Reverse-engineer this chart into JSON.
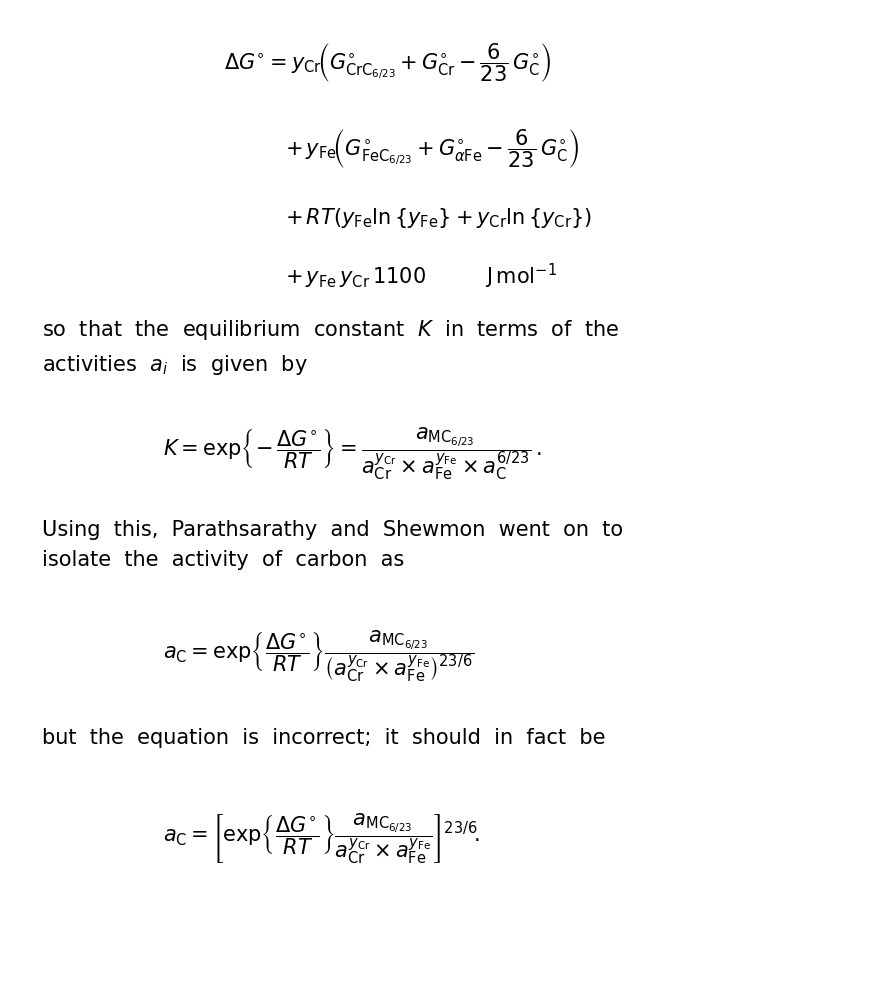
{
  "background_color": "#ffffff",
  "text_color": "#000000",
  "figsize": [
    8.82,
    10.01
  ],
  "dpi": 100,
  "equation1": "$\\Delta G^{\\circ} = y_{\\mathrm{Cr}}\\left(G^{\\circ}_{\\mathrm{CrC}_{6/23}} + G^{\\circ}_{\\mathrm{Cr}} - \\dfrac{6}{23}\\,G^{\\circ}_{\\mathrm{C}}\\right)$",
  "equation1b": "$+ y_{\\mathrm{Fe}}\\left(G^{\\circ}_{\\mathrm{FeC}_{6/23}} + G^{\\circ}_{\\alpha\\mathrm{Fe}} - \\dfrac{6}{23}\\,G^{\\circ}_{\\mathrm{C}}\\right)$",
  "equation1c": "$+ RT(y_{\\mathrm{Fe}}\\ln\\{y_{\\mathrm{Fe}}\\} + y_{\\mathrm{Cr}}\\ln\\{y_{\\mathrm{Cr}}\\})$",
  "equation1d": "$+ y_{\\mathrm{Fe}}\\,y_{\\mathrm{Cr}}\\,1100 \\qquad \\mathrm{J\\,mol^{-1}}$",
  "text1": "so  that  the  equilibrium  constant  $K$  in  terms  of  the\nactivities  $a_i$  is  given  by",
  "equation2": "$K = \\exp\\!\\left\\{-\\,\\dfrac{\\Delta G^{\\circ}}{RT}\\right\\} = \\dfrac{a_{\\mathrm{MC}_{6/23}}}{a^{y_{\\mathrm{Cr}}}_{\\mathrm{Cr}} \\times a^{y_{\\mathrm{Fe}}}_{\\mathrm{Fe}} \\times a^{6/23}_{\\mathrm{C}}}\\,.$",
  "text2": "Using  this,  Parathsarathy  and  Shewmon  went  on  to\nisolate  the  activity  of  carbon  as",
  "equation3": "$a_{\\mathrm{C}} = \\exp\\!\\left\\{\\dfrac{\\Delta G^{\\circ}}{RT}\\right\\} \\dfrac{a_{\\mathrm{MC}_{6/23}}}{\\left(a^{y_{\\mathrm{Cr}}}_{\\mathrm{Cr}} \\times a^{y_{\\mathrm{Fe}}}_{\\mathrm{Fe}}\\right)^{23/6}}$",
  "text3": "but  the  equation  is  incorrect;  it  should  in  fact  be",
  "equation4": "$a_{\\mathrm{C}} = \\left[\\exp\\!\\left\\{\\dfrac{\\Delta G^{\\circ}}{RT}\\right\\} \\dfrac{a_{\\mathrm{MC}_{6/23}}}{a^{y_{\\mathrm{Cr}}}_{\\mathrm{Cr}} \\times a^{y_{\\mathrm{Fe}}}_{\\mathrm{Fe}}}\\right]^{23/6}\\,.$"
}
